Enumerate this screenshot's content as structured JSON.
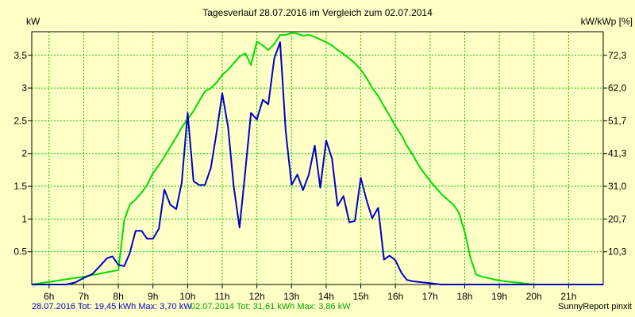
{
  "chart_data": {
    "type": "line",
    "title": "Tagesverlauf 28.07.2016 im Vergleich zum 02.07.2014",
    "ylabel_left": "kW",
    "ylabel_right": "kW/kWp [%]",
    "xlim": [
      5.5,
      22.0
    ],
    "ylim": [
      0,
      3.86
    ],
    "x_ticks": [
      "6h",
      "7h",
      "8h",
      "9h",
      "10h",
      "11h",
      "12h",
      "13h",
      "14h",
      "15h",
      "16h",
      "17h",
      "18h",
      "19h",
      "20h",
      "21h"
    ],
    "y_ticks_left": [
      "0.5",
      "1",
      "1.5",
      "2",
      "2.5",
      "3",
      "3.5"
    ],
    "y_ticks_right": [
      "10,3",
      "20,7",
      "31,0",
      "41,3",
      "51,7",
      "62,0",
      "72,3"
    ],
    "grid": true,
    "series": [
      {
        "name": "28.07.2016",
        "color": "#0000CC",
        "x": [
          5.5,
          6.5,
          6.75,
          7.0,
          7.25,
          7.5,
          7.67,
          7.83,
          8.0,
          8.17,
          8.33,
          8.5,
          8.67,
          8.83,
          9.0,
          9.17,
          9.33,
          9.5,
          9.67,
          9.83,
          10.0,
          10.17,
          10.33,
          10.5,
          10.67,
          10.83,
          11.0,
          11.17,
          11.33,
          11.5,
          11.67,
          11.83,
          12.0,
          12.17,
          12.33,
          12.5,
          12.67,
          12.83,
          13.0,
          13.17,
          13.33,
          13.5,
          13.67,
          13.83,
          14.0,
          14.17,
          14.33,
          14.5,
          14.67,
          14.83,
          15.0,
          15.17,
          15.33,
          15.5,
          15.67,
          15.83,
          16.0,
          16.17,
          16.33,
          16.5,
          16.67,
          16.83,
          17.0,
          17.17,
          17.33,
          17.5,
          17.67,
          17.83,
          18.0,
          18.17,
          18.33,
          18.5,
          18.67,
          18.83,
          19.0,
          19.17,
          19.33,
          19.5,
          19.67,
          19.83,
          20.0,
          20.17,
          20.33,
          20.5,
          20.67,
          20.83,
          21.0,
          21.17,
          21.33,
          22.0
        ],
        "values": [
          0,
          0,
          0.03,
          0.1,
          0.16,
          0.3,
          0.4,
          0.43,
          0.3,
          0.28,
          0.48,
          0.82,
          0.82,
          0.7,
          0.7,
          0.85,
          1.45,
          1.22,
          1.15,
          1.55,
          2.62,
          1.58,
          1.52,
          1.52,
          1.78,
          2.3,
          2.92,
          2.4,
          1.5,
          0.87,
          1.75,
          2.62,
          2.52,
          2.82,
          2.75,
          3.45,
          3.7,
          2.35,
          1.52,
          1.68,
          1.44,
          1.68,
          2.12,
          1.48,
          2.2,
          1.92,
          1.2,
          1.35,
          0.95,
          0.97,
          1.63,
          1.28,
          1.01,
          1.17,
          0.38,
          0.44,
          0.37,
          0.18,
          0.07,
          0.05,
          0.04,
          0.03,
          0.02,
          0.01,
          0,
          0,
          0,
          0,
          0,
          0,
          0,
          0,
          0,
          0,
          0,
          0,
          0,
          0,
          0,
          0,
          0,
          0,
          0,
          0,
          0,
          0,
          0,
          0,
          0,
          0
        ]
      },
      {
        "name": "02.07.2014",
        "color": "#00DD00",
        "x": [
          5.5,
          7.0,
          8.0,
          8.17,
          8.33,
          8.5,
          8.67,
          8.83,
          9.0,
          9.17,
          9.33,
          9.5,
          9.67,
          9.83,
          10.0,
          10.17,
          10.33,
          10.5,
          10.67,
          10.83,
          11.0,
          11.17,
          11.33,
          11.5,
          11.67,
          11.83,
          12.0,
          12.17,
          12.33,
          12.5,
          12.67,
          12.83,
          13.0,
          13.17,
          13.33,
          13.5,
          13.67,
          13.83,
          14.0,
          14.17,
          14.33,
          14.5,
          14.67,
          14.83,
          15.0,
          15.17,
          15.33,
          15.5,
          15.67,
          15.83,
          16.0,
          16.17,
          16.33,
          16.5,
          16.67,
          16.83,
          17.0,
          17.17,
          17.33,
          17.5,
          17.67,
          17.83,
          18.0,
          18.17,
          18.33,
          18.5,
          18.67,
          18.83,
          19.0,
          19.17,
          19.33,
          19.5,
          19.67,
          19.83,
          20.0,
          20.17,
          20.33,
          20.5,
          20.67,
          20.83,
          21.0,
          21.17,
          21.33,
          21.5,
          21.67,
          21.83,
          22.0
        ],
        "values": [
          0,
          0.12,
          0.22,
          0.98,
          1.22,
          1.3,
          1.4,
          1.52,
          1.7,
          1.82,
          1.95,
          2.1,
          2.25,
          2.4,
          2.52,
          2.65,
          2.8,
          2.95,
          3.0,
          3.08,
          3.2,
          3.28,
          3.38,
          3.48,
          3.53,
          3.35,
          3.71,
          3.65,
          3.58,
          3.67,
          3.81,
          3.81,
          3.84,
          3.83,
          3.8,
          3.81,
          3.78,
          3.74,
          3.7,
          3.65,
          3.58,
          3.52,
          3.45,
          3.38,
          3.28,
          3.15,
          3.0,
          2.88,
          2.72,
          2.58,
          2.42,
          2.28,
          2.12,
          1.98,
          1.82,
          1.7,
          1.58,
          1.48,
          1.38,
          1.3,
          1.22,
          1.1,
          0.8,
          0.4,
          0.15,
          0.12,
          0.1,
          0.08,
          0.06,
          0.05,
          0.04,
          0.03,
          0.02,
          0.01,
          0,
          0,
          0,
          0,
          0,
          0,
          0,
          0,
          0,
          0,
          0,
          0,
          0
        ]
      }
    ],
    "footer_left": "28.07.2016 Tot: 19,45 kWh Max: 3,70 kW",
    "footer_mid": "02.07.2014 Tot: 31,61 kWh Max: 3,86 kW",
    "footer_right": "SunnyReport pinxit"
  }
}
